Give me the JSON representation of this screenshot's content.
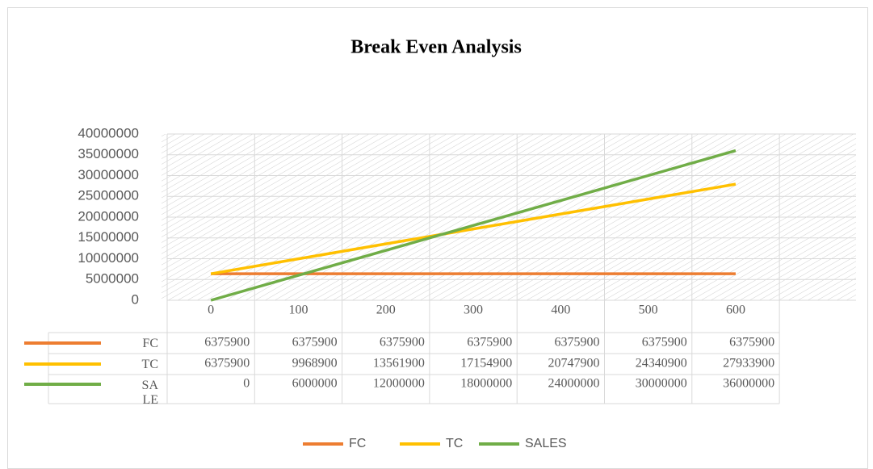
{
  "chart_data": {
    "type": "line",
    "title": "Break Even Analysis",
    "categories": [
      0,
      100,
      200,
      300,
      400,
      500,
      600
    ],
    "series": [
      {
        "name": "FC",
        "color": "#ed7d31",
        "values": [
          6375900,
          6375900,
          6375900,
          6375900,
          6375900,
          6375900,
          6375900
        ]
      },
      {
        "name": "TC",
        "color": "#ffc000",
        "values": [
          6375900,
          9968900,
          13561900,
          17154900,
          20747900,
          24340900,
          27933900
        ]
      },
      {
        "name": "SALES",
        "color": "#70ad47",
        "values": [
          0,
          6000000,
          12000000,
          18000000,
          24000000,
          30000000,
          36000000
        ]
      }
    ],
    "ylim": [
      0,
      40000000
    ],
    "yticks": [
      0,
      5000000,
      10000000,
      15000000,
      20000000,
      25000000,
      30000000,
      35000000,
      40000000
    ],
    "grid": true,
    "legend": "bottom",
    "data_table": true
  }
}
